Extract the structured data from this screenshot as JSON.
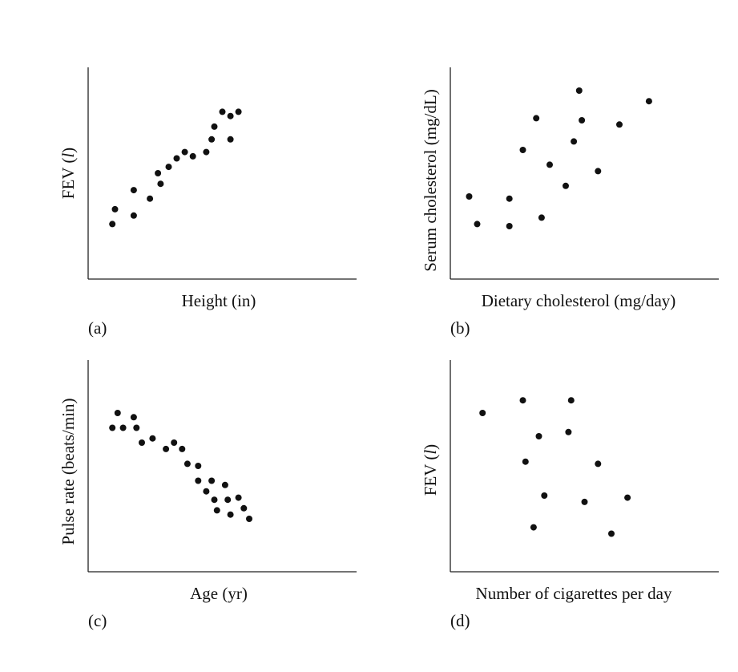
{
  "chart_data": [
    {
      "type": "scatter",
      "panel_label": "(a)",
      "xlabel": "Height (in)",
      "ylabel": "FEV (l)",
      "ylabel_parts": [
        "FEV (",
        "l",
        ")"
      ],
      "xlim": [
        0,
        10
      ],
      "ylim": [
        0,
        10
      ],
      "points": [
        [
          0.9,
          2.6
        ],
        [
          1.0,
          3.3
        ],
        [
          1.7,
          3.0
        ],
        [
          1.7,
          4.2
        ],
        [
          2.3,
          3.8
        ],
        [
          2.7,
          4.5
        ],
        [
          2.6,
          5.0
        ],
        [
          3.0,
          5.3
        ],
        [
          3.3,
          5.7
        ],
        [
          3.6,
          6.0
        ],
        [
          3.9,
          5.8
        ],
        [
          4.4,
          6.0
        ],
        [
          4.6,
          6.6
        ],
        [
          4.7,
          7.2
        ],
        [
          5.0,
          7.9
        ],
        [
          5.3,
          6.6
        ],
        [
          5.3,
          7.7
        ],
        [
          5.6,
          7.9
        ]
      ]
    },
    {
      "type": "scatter",
      "panel_label": "(b)",
      "xlabel": "Dietary cholesterol (mg/day)",
      "ylabel": "Serum cholesterol (mg/dL)",
      "xlim": [
        0,
        10
      ],
      "ylim": [
        0,
        10
      ],
      "points": [
        [
          0.7,
          3.9
        ],
        [
          1.0,
          2.6
        ],
        [
          2.2,
          3.8
        ],
        [
          2.2,
          2.5
        ],
        [
          2.7,
          6.1
        ],
        [
          3.2,
          7.6
        ],
        [
          3.4,
          2.9
        ],
        [
          3.7,
          5.4
        ],
        [
          4.3,
          4.4
        ],
        [
          4.6,
          6.5
        ],
        [
          4.8,
          8.9
        ],
        [
          4.9,
          7.5
        ],
        [
          5.5,
          5.1
        ],
        [
          6.3,
          7.3
        ],
        [
          7.4,
          8.4
        ]
      ]
    },
    {
      "type": "scatter",
      "panel_label": "(c)",
      "xlabel": "Age (yr)",
      "ylabel": "Pulse rate (beats/min)",
      "xlim": [
        0,
        10
      ],
      "ylim": [
        0,
        10
      ],
      "points": [
        [
          0.9,
          6.8
        ],
        [
          1.1,
          7.5
        ],
        [
          1.3,
          6.8
        ],
        [
          1.7,
          7.3
        ],
        [
          1.8,
          6.8
        ],
        [
          2.0,
          6.1
        ],
        [
          2.4,
          6.3
        ],
        [
          2.9,
          5.8
        ],
        [
          3.2,
          6.1
        ],
        [
          3.5,
          5.8
        ],
        [
          3.7,
          5.1
        ],
        [
          4.1,
          5.0
        ],
        [
          4.1,
          4.3
        ],
        [
          4.4,
          3.8
        ],
        [
          4.6,
          4.3
        ],
        [
          4.7,
          3.4
        ],
        [
          4.8,
          2.9
        ],
        [
          5.1,
          4.1
        ],
        [
          5.2,
          3.4
        ],
        [
          5.3,
          2.7
        ],
        [
          5.6,
          3.5
        ],
        [
          5.8,
          3.0
        ],
        [
          6.0,
          2.5
        ]
      ]
    },
    {
      "type": "scatter",
      "panel_label": "(d)",
      "xlabel": "Number of cigarettes per day",
      "ylabel": "FEV (l)",
      "ylabel_parts": [
        "FEV (",
        "l",
        ")"
      ],
      "xlim": [
        0,
        10
      ],
      "ylim": [
        0,
        10
      ],
      "points": [
        [
          1.2,
          7.5
        ],
        [
          2.7,
          8.1
        ],
        [
          2.8,
          5.2
        ],
        [
          3.1,
          2.1
        ],
        [
          3.3,
          6.4
        ],
        [
          3.5,
          3.6
        ],
        [
          4.4,
          6.6
        ],
        [
          4.5,
          8.1
        ],
        [
          5.0,
          3.3
        ],
        [
          5.5,
          5.1
        ],
        [
          6.0,
          1.8
        ],
        [
          6.6,
          3.5
        ]
      ]
    }
  ]
}
